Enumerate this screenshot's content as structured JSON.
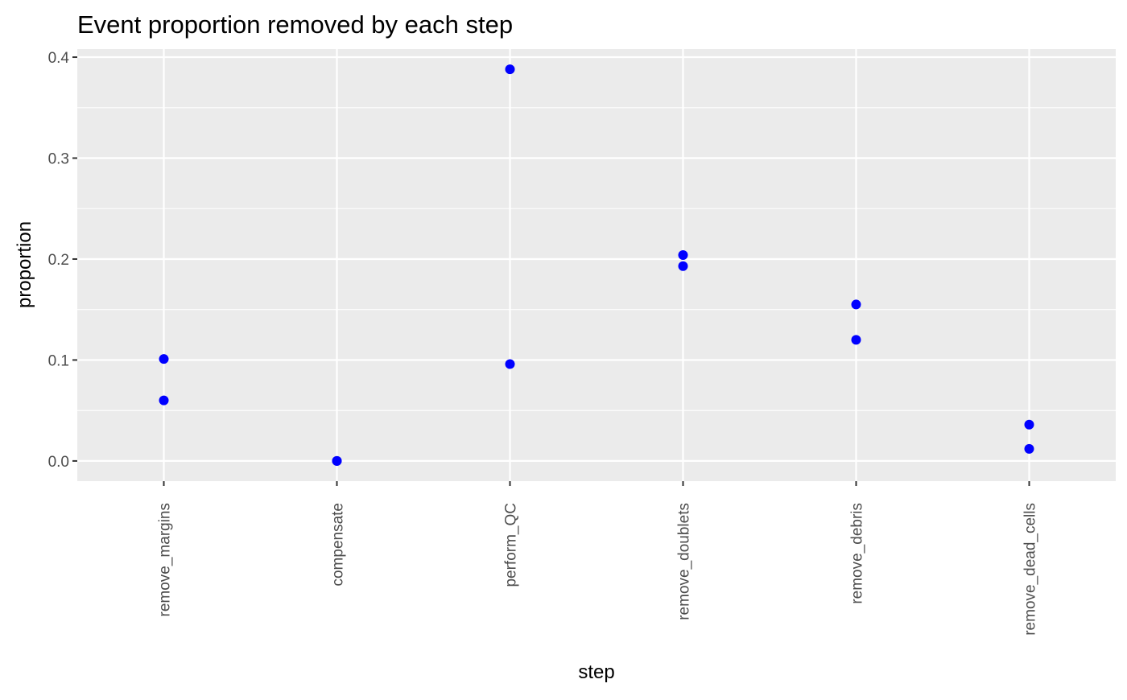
{
  "chart_data": {
    "type": "scatter",
    "title": "Event proportion removed by each step",
    "xlabel": "step",
    "ylabel": "proportion",
    "categories": [
      "remove_margins",
      "compensate",
      "perform_QC",
      "remove_doublets",
      "remove_debris",
      "remove_dead_cells"
    ],
    "yticks": [
      0.0,
      0.1,
      0.2,
      0.3,
      0.4
    ],
    "ytick_labels": [
      "0.0",
      "0.1",
      "0.2",
      "0.3",
      "0.4"
    ],
    "ylim": [
      -0.02,
      0.408
    ],
    "grid": true,
    "point_color": "#0000ff",
    "panel_color": "#ebebeb",
    "grid_color": "#ffffff",
    "points": [
      {
        "x": "remove_margins",
        "y": 0.101
      },
      {
        "x": "remove_margins",
        "y": 0.06
      },
      {
        "x": "compensate",
        "y": 0.0
      },
      {
        "x": "compensate",
        "y": 0.0
      },
      {
        "x": "perform_QC",
        "y": 0.388
      },
      {
        "x": "perform_QC",
        "y": 0.096
      },
      {
        "x": "remove_doublets",
        "y": 0.204
      },
      {
        "x": "remove_doublets",
        "y": 0.193
      },
      {
        "x": "remove_debris",
        "y": 0.155
      },
      {
        "x": "remove_debris",
        "y": 0.12
      },
      {
        "x": "remove_dead_cells",
        "y": 0.036
      },
      {
        "x": "remove_dead_cells",
        "y": 0.012
      }
    ]
  }
}
